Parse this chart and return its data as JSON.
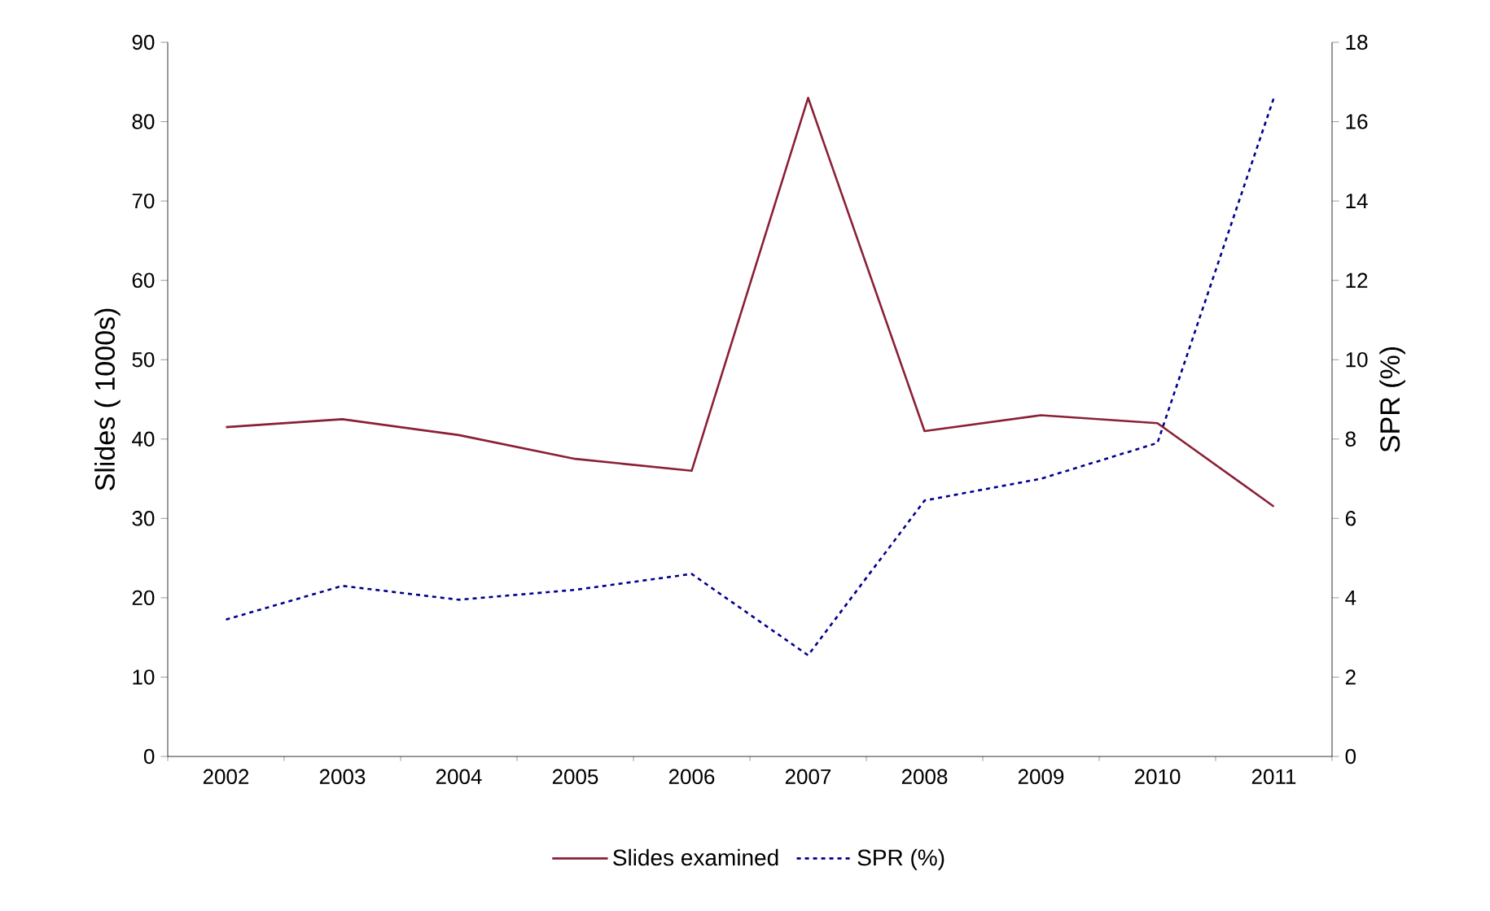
{
  "chart_data": {
    "type": "line",
    "categories": [
      "2002",
      "2003",
      "2004",
      "2005",
      "2006",
      "2007",
      "2008",
      "2009",
      "2010",
      "2011"
    ],
    "series": [
      {
        "name": "Slides examined",
        "color": "#8b2035",
        "line_style": "solid",
        "values": [
          41.5,
          42.5,
          40.5,
          37.5,
          36,
          83,
          41,
          43,
          42,
          31.5
        ]
      },
      {
        "name": "SPR (%)",
        "color": "#00008b",
        "line_style": "dotted",
        "axis": "y2",
        "values": [
          3.45,
          4.3,
          3.95,
          4.2,
          4.6,
          2.55,
          6.45,
          7.0,
          7.9,
          16.6
        ]
      }
    ],
    "ylabel": "Slides ( 1000s)",
    "y2label": "SPR (%)",
    "ylim": [
      0,
      90
    ],
    "yticks": [
      0,
      10,
      20,
      30,
      40,
      50,
      60,
      70,
      80,
      90
    ],
    "y2lim": [
      0,
      18
    ],
    "y2ticks": [
      0,
      2,
      4,
      6,
      8,
      10,
      12,
      14,
      16,
      18
    ],
    "grid": false,
    "legend": "bottom",
    "marker": "none"
  }
}
